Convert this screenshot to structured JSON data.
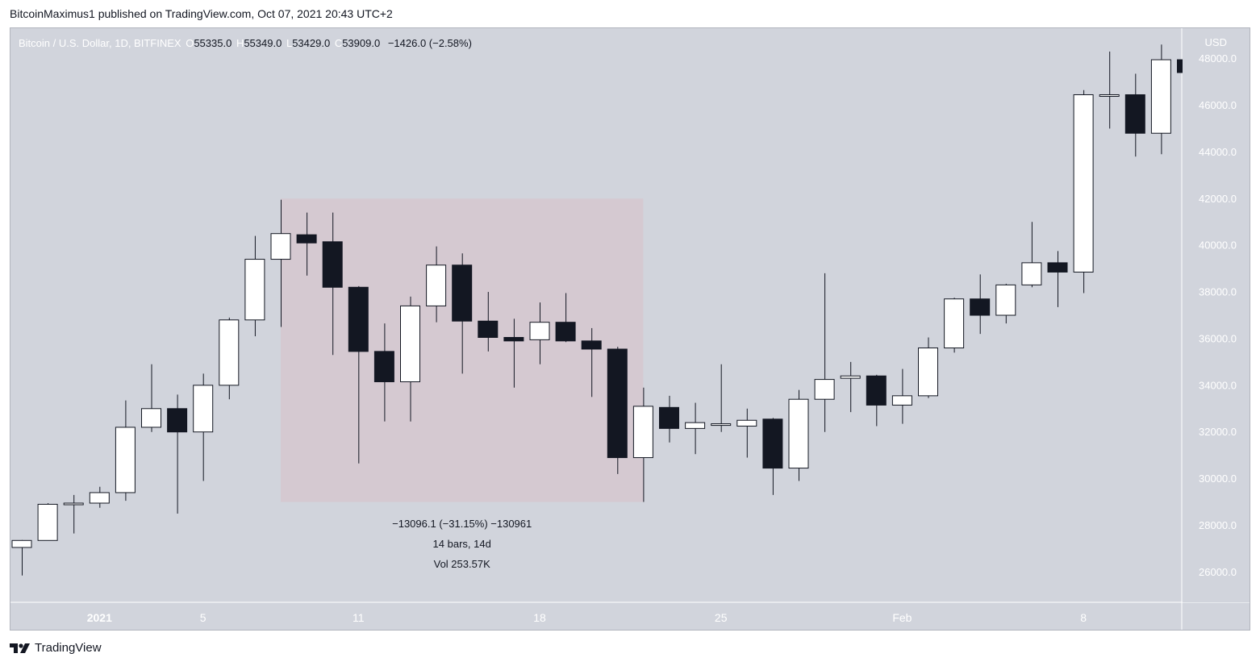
{
  "header": {
    "publisher": "BitcoinMaximus1 published on TradingView.com, Oct 07, 2021 20:43 UTC+2"
  },
  "legend": {
    "symbol": "Bitcoin / U.S. Dollar, 1D, BITFINEX",
    "open_label": "O",
    "open": "55335.0",
    "high_label": "H",
    "high": "55349.0",
    "low_label": "L",
    "low": "53429.0",
    "close_label": "C",
    "close": "53909.0",
    "change": "−1426.0 (−2.58%)"
  },
  "measure": {
    "line1": "−13096.1 (−31.15%) −130961",
    "line2": "14 bars, 14d",
    "line3": "Vol 253.57K"
  },
  "footer": {
    "brand": "TradingView"
  },
  "colors": {
    "background": "#d1d4dc",
    "bull_fill": "#ffffff",
    "bear_fill": "#131722",
    "wick": "#131722",
    "measure_box": "#d5c9d1"
  },
  "chart_data": {
    "type": "candlestick",
    "title": "Bitcoin / U.S. Dollar, 1D, BITFINEX",
    "currency_label": "USD",
    "ylim": [
      24700,
      49300
    ],
    "y_ticks": [
      "26000.0",
      "28000.0",
      "30000.0",
      "32000.0",
      "34000.0",
      "36000.0",
      "38000.0",
      "40000.0",
      "42000.0",
      "44000.0",
      "46000.0",
      "48000.0"
    ],
    "x_ticks": [
      {
        "label": "2021",
        "index": 3
      },
      {
        "label": "5",
        "index": 7
      },
      {
        "label": "11",
        "index": 13
      },
      {
        "label": "18",
        "index": 20
      },
      {
        "label": "25",
        "index": 27
      },
      {
        "label": "Feb",
        "index": 34
      },
      {
        "label": "8",
        "index": 41
      }
    ],
    "candles": [
      {
        "date": "2020-12-29",
        "o": 27050,
        "h": 27370,
        "l": 25850,
        "c": 27350
      },
      {
        "date": "2020-12-30",
        "o": 27350,
        "h": 28950,
        "l": 27350,
        "c": 28900
      },
      {
        "date": "2020-12-31",
        "o": 28900,
        "h": 29300,
        "l": 27650,
        "c": 28950
      },
      {
        "date": "2021-01-01",
        "o": 28950,
        "h": 29650,
        "l": 28750,
        "c": 29400
      },
      {
        "date": "2021-01-02",
        "o": 29400,
        "h": 33350,
        "l": 29050,
        "c": 32200
      },
      {
        "date": "2021-01-03",
        "o": 32200,
        "h": 34900,
        "l": 32000,
        "c": 33000
      },
      {
        "date": "2021-01-04",
        "o": 33000,
        "h": 33600,
        "l": 28500,
        "c": 32000
      },
      {
        "date": "2021-01-05",
        "o": 32000,
        "h": 34500,
        "l": 29900,
        "c": 34000
      },
      {
        "date": "2021-01-06",
        "o": 34000,
        "h": 36900,
        "l": 33400,
        "c": 36800
      },
      {
        "date": "2021-01-07",
        "o": 36800,
        "h": 40400,
        "l": 36100,
        "c": 39400
      },
      {
        "date": "2021-01-08",
        "o": 39400,
        "h": 41950,
        "l": 36500,
        "c": 40500
      },
      {
        "date": "2021-01-09",
        "o": 40450,
        "h": 41400,
        "l": 38700,
        "c": 40100
      },
      {
        "date": "2021-01-10",
        "o": 40150,
        "h": 41400,
        "l": 35300,
        "c": 38200
      },
      {
        "date": "2021-01-11",
        "o": 38200,
        "h": 38250,
        "l": 30650,
        "c": 35450
      },
      {
        "date": "2021-01-12",
        "o": 35450,
        "h": 36650,
        "l": 32450,
        "c": 34150
      },
      {
        "date": "2021-01-13",
        "o": 34150,
        "h": 37800,
        "l": 32450,
        "c": 37400
      },
      {
        "date": "2021-01-14",
        "o": 37400,
        "h": 39950,
        "l": 36700,
        "c": 39150
      },
      {
        "date": "2021-01-15",
        "o": 39150,
        "h": 39650,
        "l": 34500,
        "c": 36750
      },
      {
        "date": "2021-01-16",
        "o": 36750,
        "h": 38000,
        "l": 35450,
        "c": 36050
      },
      {
        "date": "2021-01-17",
        "o": 36050,
        "h": 36850,
        "l": 33900,
        "c": 35900
      },
      {
        "date": "2021-01-18",
        "o": 35950,
        "h": 37550,
        "l": 34900,
        "c": 36700
      },
      {
        "date": "2021-01-19",
        "o": 36700,
        "h": 37950,
        "l": 35850,
        "c": 35900
      },
      {
        "date": "2021-01-20",
        "o": 35900,
        "h": 36450,
        "l": 33500,
        "c": 35550
      },
      {
        "date": "2021-01-21",
        "o": 35550,
        "h": 35650,
        "l": 30200,
        "c": 30900
      },
      {
        "date": "2021-01-22",
        "o": 30900,
        "h": 33900,
        "l": 29000,
        "c": 33100
      },
      {
        "date": "2021-01-23",
        "o": 33050,
        "h": 33550,
        "l": 31550,
        "c": 32150
      },
      {
        "date": "2021-01-24",
        "o": 32150,
        "h": 33250,
        "l": 31050,
        "c": 32400
      },
      {
        "date": "2021-01-25",
        "o": 32300,
        "h": 34900,
        "l": 32000,
        "c": 32350
      },
      {
        "date": "2021-01-26",
        "o": 32250,
        "h": 33000,
        "l": 30900,
        "c": 32500
      },
      {
        "date": "2021-01-27",
        "o": 32550,
        "h": 32600,
        "l": 29300,
        "c": 30450
      },
      {
        "date": "2021-01-28",
        "o": 30450,
        "h": 33800,
        "l": 29900,
        "c": 33400
      },
      {
        "date": "2021-01-29",
        "o": 33400,
        "h": 38800,
        "l": 32000,
        "c": 34250
      },
      {
        "date": "2021-01-30",
        "o": 34300,
        "h": 35000,
        "l": 32850,
        "c": 34400
      },
      {
        "date": "2021-01-31",
        "o": 34400,
        "h": 34450,
        "l": 32250,
        "c": 33150
      },
      {
        "date": "2021-02-01",
        "o": 33150,
        "h": 34700,
        "l": 32350,
        "c": 33550
      },
      {
        "date": "2021-02-02",
        "o": 33550,
        "h": 36050,
        "l": 33450,
        "c": 35600
      },
      {
        "date": "2021-02-03",
        "o": 35600,
        "h": 37750,
        "l": 35400,
        "c": 37700
      },
      {
        "date": "2021-02-04",
        "o": 37700,
        "h": 38750,
        "l": 36200,
        "c": 37000
      },
      {
        "date": "2021-02-05",
        "o": 37000,
        "h": 38350,
        "l": 36650,
        "c": 38300
      },
      {
        "date": "2021-02-06",
        "o": 38300,
        "h": 41000,
        "l": 38200,
        "c": 39250
      },
      {
        "date": "2021-02-07",
        "o": 39250,
        "h": 39750,
        "l": 37350,
        "c": 38850
      },
      {
        "date": "2021-02-08",
        "o": 38850,
        "h": 46650,
        "l": 37950,
        "c": 46450
      },
      {
        "date": "2021-02-09",
        "o": 46450,
        "h": 48300,
        "l": 45000,
        "c": 46450
      },
      {
        "date": "2021-02-10",
        "o": 46450,
        "h": 47350,
        "l": 43800,
        "c": 44800
      },
      {
        "date": "2021-02-11",
        "o": 44800,
        "h": 48600,
        "l": 43900,
        "c": 47950
      },
      {
        "date": "2021-02-12",
        "o": 47950,
        "h": 48500,
        "l": 46400,
        "c": 47400
      }
    ],
    "measure_range": {
      "from_index": 10,
      "to_index": 24,
      "high": 42000,
      "low": 29000
    }
  }
}
